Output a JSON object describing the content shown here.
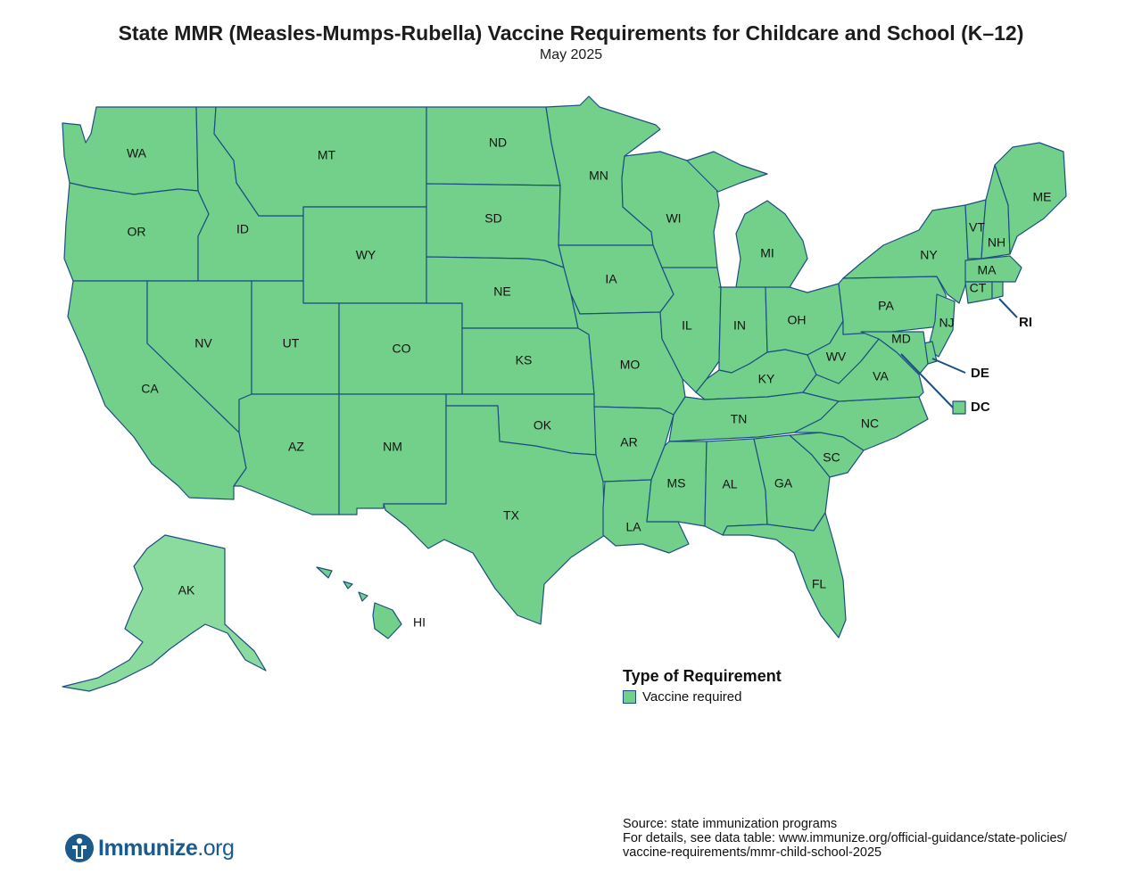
{
  "title": "State MMR (Measles-Mumps-Rubella) Vaccine Requirements for Childcare and School (K–12)",
  "subtitle": "May 2025",
  "colors": {
    "vaccine_required": "#73D08A",
    "alaska_fill": "#8CDB9E",
    "border": "#1b4f82"
  },
  "legend": {
    "title": "Type of Requirement",
    "items": [
      {
        "label": "Vaccine required",
        "color": "#73D08A"
      }
    ]
  },
  "states": {
    "WA": "Vaccine required",
    "OR": "Vaccine required",
    "CA": "Vaccine required",
    "ID": "Vaccine required",
    "NV": "Vaccine required",
    "MT": "Vaccine required",
    "WY": "Vaccine required",
    "UT": "Vaccine required",
    "AZ": "Vaccine required",
    "CO": "Vaccine required",
    "NM": "Vaccine required",
    "ND": "Vaccine required",
    "SD": "Vaccine required",
    "NE": "Vaccine required",
    "KS": "Vaccine required",
    "OK": "Vaccine required",
    "TX": "Vaccine required",
    "MN": "Vaccine required",
    "IA": "Vaccine required",
    "MO": "Vaccine required",
    "AR": "Vaccine required",
    "LA": "Vaccine required",
    "WI": "Vaccine required",
    "IL": "Vaccine required",
    "MI": "Vaccine required",
    "IN": "Vaccine required",
    "OH": "Vaccine required",
    "KY": "Vaccine required",
    "TN": "Vaccine required",
    "MS": "Vaccine required",
    "AL": "Vaccine required",
    "GA": "Vaccine required",
    "FL": "Vaccine required",
    "SC": "Vaccine required",
    "NC": "Vaccine required",
    "VA": "Vaccine required",
    "WV": "Vaccine required",
    "PA": "Vaccine required",
    "NY": "Vaccine required",
    "VT": "Vaccine required",
    "NH": "Vaccine required",
    "ME": "Vaccine required",
    "MA": "Vaccine required",
    "CT": "Vaccine required",
    "RI": "Vaccine required",
    "NJ": "Vaccine required",
    "DE": "Vaccine required",
    "MD": "Vaccine required",
    "DC": "Vaccine required",
    "AK": "Vaccine required",
    "HI": "Vaccine required"
  },
  "labels": {
    "WA": "WA",
    "OR": "OR",
    "CA": "CA",
    "ID": "ID",
    "NV": "NV",
    "MT": "MT",
    "WY": "WY",
    "UT": "UT",
    "AZ": "AZ",
    "CO": "CO",
    "NM": "NM",
    "ND": "ND",
    "SD": "SD",
    "NE": "NE",
    "KS": "KS",
    "OK": "OK",
    "TX": "TX",
    "MN": "MN",
    "IA": "IA",
    "MO": "MO",
    "AR": "AR",
    "LA": "LA",
    "WI": "WI",
    "IL": "IL",
    "MI": "MI",
    "IN": "IN",
    "OH": "OH",
    "KY": "KY",
    "TN": "TN",
    "MS": "MS",
    "AL": "AL",
    "GA": "GA",
    "FL": "FL",
    "SC": "SC",
    "NC": "NC",
    "VA": "VA",
    "WV": "WV",
    "PA": "PA",
    "NY": "NY",
    "VT": "VT",
    "NH": "NH",
    "ME": "ME",
    "MA": "MA",
    "CT": "CT",
    "RI": "RI",
    "NJ": "NJ",
    "DE": "DE",
    "MD": "MD",
    "DC": "DC",
    "AK": "AK",
    "HI": "HI"
  },
  "source": {
    "line1": "Source: state immunization programs",
    "line2": "For details, see data table: www.immunize.org/official-guidance/state-policies/",
    "line3": "vaccine-requirements/mmr-child-school-2025"
  },
  "logo": {
    "name": "Immunize",
    "suffix": ".org",
    "icon": "immunize-logo-icon"
  }
}
